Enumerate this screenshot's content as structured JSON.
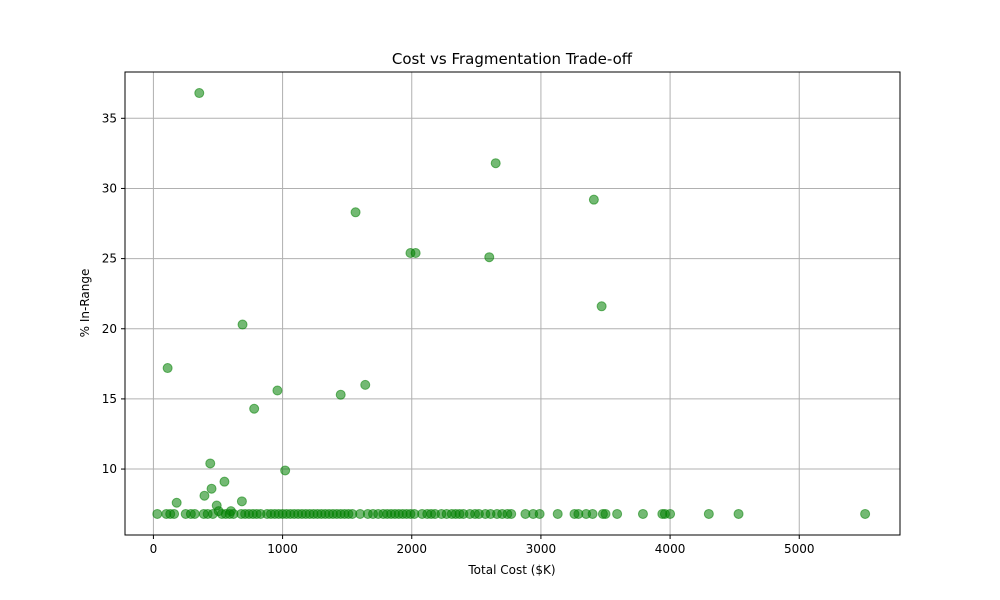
{
  "chart_data": {
    "type": "scatter",
    "title": "Cost vs Fragmentation Trade-off",
    "xlabel": "Total Cost ($K)",
    "ylabel": "% In-Range",
    "xlim": [
      -220,
      5780
    ],
    "ylim": [
      5.3,
      38.3
    ],
    "xticks": [
      0,
      1000,
      2000,
      3000,
      4000,
      5000
    ],
    "yticks": [
      10,
      15,
      20,
      25,
      30,
      35
    ],
    "grid": true,
    "marker_color": "#008000",
    "marker_alpha": 0.55,
    "points": [
      {
        "x": 355,
        "y": 36.8
      },
      {
        "x": 2650,
        "y": 31.8
      },
      {
        "x": 3410,
        "y": 29.2
      },
      {
        "x": 1565,
        "y": 28.3
      },
      {
        "x": 1990,
        "y": 25.4
      },
      {
        "x": 2030,
        "y": 25.4
      },
      {
        "x": 2600,
        "y": 25.1
      },
      {
        "x": 3470,
        "y": 21.6
      },
      {
        "x": 690,
        "y": 20.3
      },
      {
        "x": 110,
        "y": 17.2
      },
      {
        "x": 1640,
        "y": 16.0
      },
      {
        "x": 960,
        "y": 15.6
      },
      {
        "x": 1450,
        "y": 15.3
      },
      {
        "x": 780,
        "y": 14.3
      },
      {
        "x": 440,
        "y": 10.4
      },
      {
        "x": 1020,
        "y": 9.9
      },
      {
        "x": 550,
        "y": 9.1
      },
      {
        "x": 450,
        "y": 8.6
      },
      {
        "x": 395,
        "y": 8.1
      },
      {
        "x": 180,
        "y": 7.6
      },
      {
        "x": 685,
        "y": 7.7
      },
      {
        "x": 490,
        "y": 7.4
      },
      {
        "x": 600,
        "y": 7.0
      },
      {
        "x": 505,
        "y": 7.0
      },
      {
        "x": 30,
        "y": 6.8
      },
      {
        "x": 100,
        "y": 6.8
      },
      {
        "x": 130,
        "y": 6.8
      },
      {
        "x": 160,
        "y": 6.8
      },
      {
        "x": 250,
        "y": 6.8
      },
      {
        "x": 290,
        "y": 6.8
      },
      {
        "x": 320,
        "y": 6.8
      },
      {
        "x": 390,
        "y": 6.8
      },
      {
        "x": 420,
        "y": 6.8
      },
      {
        "x": 460,
        "y": 6.8
      },
      {
        "x": 530,
        "y": 6.8
      },
      {
        "x": 560,
        "y": 6.8
      },
      {
        "x": 590,
        "y": 6.8
      },
      {
        "x": 620,
        "y": 6.8
      },
      {
        "x": 680,
        "y": 6.8
      },
      {
        "x": 710,
        "y": 6.8
      },
      {
        "x": 740,
        "y": 6.8
      },
      {
        "x": 770,
        "y": 6.8
      },
      {
        "x": 800,
        "y": 6.8
      },
      {
        "x": 830,
        "y": 6.8
      },
      {
        "x": 880,
        "y": 6.8
      },
      {
        "x": 910,
        "y": 6.8
      },
      {
        "x": 940,
        "y": 6.8
      },
      {
        "x": 970,
        "y": 6.8
      },
      {
        "x": 1000,
        "y": 6.8
      },
      {
        "x": 1030,
        "y": 6.8
      },
      {
        "x": 1060,
        "y": 6.8
      },
      {
        "x": 1090,
        "y": 6.8
      },
      {
        "x": 1120,
        "y": 6.8
      },
      {
        "x": 1150,
        "y": 6.8
      },
      {
        "x": 1180,
        "y": 6.8
      },
      {
        "x": 1210,
        "y": 6.8
      },
      {
        "x": 1240,
        "y": 6.8
      },
      {
        "x": 1270,
        "y": 6.8
      },
      {
        "x": 1300,
        "y": 6.8
      },
      {
        "x": 1330,
        "y": 6.8
      },
      {
        "x": 1360,
        "y": 6.8
      },
      {
        "x": 1390,
        "y": 6.8
      },
      {
        "x": 1420,
        "y": 6.8
      },
      {
        "x": 1450,
        "y": 6.8
      },
      {
        "x": 1480,
        "y": 6.8
      },
      {
        "x": 1510,
        "y": 6.8
      },
      {
        "x": 1540,
        "y": 6.8
      },
      {
        "x": 1600,
        "y": 6.8
      },
      {
        "x": 1660,
        "y": 6.8
      },
      {
        "x": 1700,
        "y": 6.8
      },
      {
        "x": 1740,
        "y": 6.8
      },
      {
        "x": 1780,
        "y": 6.8
      },
      {
        "x": 1810,
        "y": 6.8
      },
      {
        "x": 1840,
        "y": 6.8
      },
      {
        "x": 1870,
        "y": 6.8
      },
      {
        "x": 1900,
        "y": 6.8
      },
      {
        "x": 1930,
        "y": 6.8
      },
      {
        "x": 1960,
        "y": 6.8
      },
      {
        "x": 1990,
        "y": 6.8
      },
      {
        "x": 2020,
        "y": 6.8
      },
      {
        "x": 2080,
        "y": 6.8
      },
      {
        "x": 2120,
        "y": 6.8
      },
      {
        "x": 2150,
        "y": 6.8
      },
      {
        "x": 2180,
        "y": 6.8
      },
      {
        "x": 2230,
        "y": 6.8
      },
      {
        "x": 2270,
        "y": 6.8
      },
      {
        "x": 2310,
        "y": 6.8
      },
      {
        "x": 2340,
        "y": 6.8
      },
      {
        "x": 2370,
        "y": 6.8
      },
      {
        "x": 2400,
        "y": 6.8
      },
      {
        "x": 2450,
        "y": 6.8
      },
      {
        "x": 2490,
        "y": 6.8
      },
      {
        "x": 2520,
        "y": 6.8
      },
      {
        "x": 2570,
        "y": 6.8
      },
      {
        "x": 2610,
        "y": 6.8
      },
      {
        "x": 2660,
        "y": 6.8
      },
      {
        "x": 2700,
        "y": 6.8
      },
      {
        "x": 2740,
        "y": 6.8
      },
      {
        "x": 2770,
        "y": 6.8
      },
      {
        "x": 2880,
        "y": 6.8
      },
      {
        "x": 2940,
        "y": 6.8
      },
      {
        "x": 2990,
        "y": 6.8
      },
      {
        "x": 3130,
        "y": 6.8
      },
      {
        "x": 3260,
        "y": 6.8
      },
      {
        "x": 3290,
        "y": 6.8
      },
      {
        "x": 3350,
        "y": 6.8
      },
      {
        "x": 3400,
        "y": 6.8
      },
      {
        "x": 3480,
        "y": 6.8
      },
      {
        "x": 3500,
        "y": 6.8
      },
      {
        "x": 3590,
        "y": 6.8
      },
      {
        "x": 3790,
        "y": 6.8
      },
      {
        "x": 3940,
        "y": 6.8
      },
      {
        "x": 3960,
        "y": 6.8
      },
      {
        "x": 4000,
        "y": 6.8
      },
      {
        "x": 4300,
        "y": 6.8
      },
      {
        "x": 4530,
        "y": 6.8
      },
      {
        "x": 5510,
        "y": 6.8
      }
    ]
  }
}
